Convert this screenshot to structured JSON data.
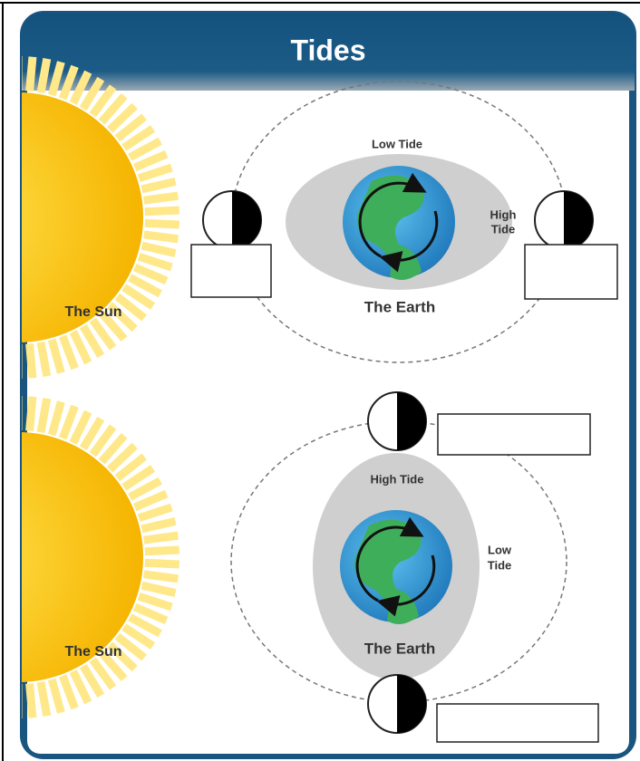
{
  "header": {
    "title": "Tides"
  },
  "panels": [
    {
      "sun_label": "The Sun",
      "earth_label": "The Earth",
      "top_label": "Low Tide",
      "side_label": [
        "High",
        "Tide"
      ]
    },
    {
      "sun_label": "The Sun",
      "earth_label": "The Earth",
      "top_label": "High Tide",
      "side_label": [
        "Low",
        "Tide"
      ]
    }
  ]
}
